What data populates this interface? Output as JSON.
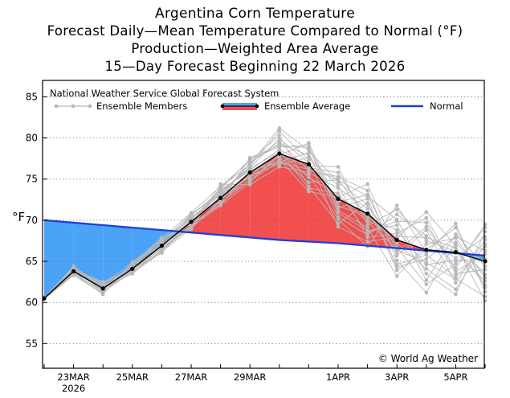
{
  "titles": {
    "line1": "Argentina Corn Temperature",
    "line2": "Forecast Daily—Mean Temperature Compared to Normal (°F)",
    "line3": "Production—Weighted Area Average",
    "line4": "15—Day Forecast Beginning 22 March 2026"
  },
  "legend": {
    "source": "National Weather Service Global Forecast System",
    "members": "Ensemble Members",
    "average": "Ensemble Average",
    "normal": "Normal"
  },
  "copyright": "© World Ag Weather",
  "colors": {
    "above": "#f24f4f",
    "below": "#4aa3f7",
    "normal": "#1e3fd9",
    "members": "#b8b8b8",
    "average": "#000000"
  },
  "chart_data": {
    "type": "line",
    "ylabel": "°F",
    "ylim": [
      52,
      87
    ],
    "yticks": [
      55,
      60,
      65,
      70,
      75,
      80,
      85
    ],
    "grid": true,
    "x": [
      "2026-03-22",
      "2026-03-23",
      "2026-03-24",
      "2026-03-25",
      "2026-03-26",
      "2026-03-27",
      "2026-03-28",
      "2026-03-29",
      "2026-03-30",
      "2026-03-31",
      "2026-04-01",
      "2026-04-02",
      "2026-04-03",
      "2026-04-04",
      "2026-04-05",
      "2026-04-06"
    ],
    "xtick_labels": [
      {
        "x": "2026-03-23",
        "label": "23MAR",
        "sublabel": "2026"
      },
      {
        "x": "2026-03-25",
        "label": "25MAR"
      },
      {
        "x": "2026-03-27",
        "label": "27MAR"
      },
      {
        "x": "2026-03-29",
        "label": "29MAR"
      },
      {
        "x": "2026-04-01",
        "label": "1APR"
      },
      {
        "x": "2026-04-03",
        "label": "3APR"
      },
      {
        "x": "2026-04-05",
        "label": "5APR"
      }
    ],
    "series": [
      {
        "name": "Ensemble Average",
        "values": [
          60.5,
          63.8,
          61.7,
          64.1,
          66.9,
          69.8,
          72.7,
          75.8,
          78.1,
          76.8,
          72.6,
          70.8,
          67.6,
          66.4,
          66.1,
          65.0
        ]
      },
      {
        "name": "Normal",
        "values": [
          70.0,
          69.7,
          69.4,
          69.1,
          68.8,
          68.5,
          68.2,
          67.9,
          67.6,
          67.4,
          67.2,
          66.9,
          66.6,
          66.3,
          66.0,
          65.7
        ]
      }
    ],
    "ensemble_members": [
      [
        60.5,
        63.9,
        61.4,
        64.6,
        67.1,
        70.1,
        73.4,
        76.3,
        78.3,
        75.2,
        73.1,
        69.8,
        66.4,
        64.8,
        62.9,
        60.7
      ],
      [
        60.4,
        63.4,
        62.1,
        63.8,
        66.6,
        69.4,
        72.1,
        74.9,
        77.1,
        78.2,
        70.4,
        68.2,
        70.7,
        68.1,
        65.4,
        68.0
      ],
      [
        60.6,
        64.2,
        61.9,
        64.5,
        67.4,
        70.4,
        73.0,
        76.9,
        79.6,
        76.0,
        75.3,
        73.6,
        65.1,
        61.2,
        67.3,
        63.4
      ],
      [
        60.5,
        63.6,
        61.2,
        63.9,
        66.2,
        69.0,
        72.4,
        75.5,
        76.8,
        77.6,
        74.2,
        67.9,
        68.4,
        70.3,
        63.8,
        65.9
      ],
      [
        60.4,
        64.0,
        62.3,
        64.8,
        67.8,
        70.9,
        74.1,
        77.2,
        80.3,
        74.1,
        69.6,
        72.1,
        63.9,
        66.4,
        69.1,
        61.8
      ],
      [
        60.6,
        63.7,
        61.6,
        63.6,
        66.4,
        69.2,
        71.8,
        74.6,
        77.9,
        79.4,
        71.7,
        70.6,
        67.2,
        64.1,
        61.6,
        67.1
      ],
      [
        60.5,
        64.4,
        62.0,
        64.2,
        66.9,
        70.6,
        73.6,
        76.1,
        78.6,
        76.6,
        76.5,
        69.4,
        71.3,
        67.5,
        66.2,
        62.6
      ],
      [
        60.4,
        63.5,
        61.0,
        64.9,
        67.6,
        69.7,
        72.9,
        75.2,
        77.4,
        73.5,
        72.8,
        74.4,
        66.1,
        69.2,
        64.2,
        69.5
      ],
      [
        60.6,
        63.8,
        62.4,
        64.0,
        66.0,
        70.3,
        72.2,
        77.6,
        79.1,
        78.8,
        70.9,
        68.7,
        69.4,
        62.7,
        68.3,
        64.4
      ],
      [
        60.5,
        64.1,
        61.3,
        63.7,
        67.2,
        68.9,
        74.4,
        74.3,
        76.5,
        75.8,
        73.9,
        71.4,
        64.6,
        65.8,
        63.1,
        66.8
      ],
      [
        60.4,
        63.6,
        62.2,
        64.4,
        66.7,
        70.7,
        73.2,
        76.6,
        80.8,
        77.3,
        69.2,
        67.4,
        67.9,
        71.0,
        66.9,
        60.2
      ],
      [
        60.6,
        64.3,
        61.5,
        64.7,
        67.9,
        69.5,
        71.9,
        75.7,
        77.7,
        74.6,
        74.9,
        72.9,
        70.1,
        63.5,
        61.0,
        68.6
      ],
      [
        60.5,
        63.9,
        61.8,
        63.5,
        66.3,
        70.0,
        73.8,
        77.4,
        78.9,
        79.1,
        71.2,
        69.1,
        63.2,
        67.1,
        67.8,
        63.0
      ],
      [
        60.4,
        63.3,
        61.1,
        64.3,
        67.5,
        70.2,
        72.6,
        74.8,
        78.0,
        76.4,
        75.8,
        70.2,
        68.8,
        64.6,
        65.1,
        65.3
      ],
      [
        60.6,
        64.0,
        62.5,
        64.1,
        66.5,
        69.3,
        73.5,
        76.4,
        79.9,
        77.0,
        72.2,
        73.1,
        65.7,
        68.8,
        62.4,
        67.6
      ],
      [
        60.5,
        63.7,
        61.7,
        64.6,
        67.0,
        70.5,
        72.3,
        75.9,
        77.2,
        75.5,
        70.1,
        66.8,
        71.8,
        66.0,
        69.6,
        61.3
      ],
      [
        60.4,
        64.2,
        61.9,
        63.9,
        66.8,
        69.1,
        74.0,
        76.8,
        81.2,
        78.5,
        74.6,
        71.9,
        66.7,
        62.2,
        64.7,
        69.1
      ],
      [
        60.6,
        63.5,
        61.4,
        64.8,
        67.3,
        70.8,
        73.1,
        75.3,
        78.4,
        73.9,
        73.3,
        68.5,
        69.9,
        69.7,
        63.5,
        64.0
      ],
      [
        60.5,
        64.1,
        62.1,
        63.6,
        66.1,
        69.9,
        72.8,
        77.0,
        79.3,
        77.9,
        71.5,
        72.6,
        64.3,
        65.3,
        68.0,
        66.3
      ],
      [
        60.4,
        63.8,
        61.6,
        64.5,
        67.7,
        69.6,
        73.7,
        76.0,
        77.0,
        76.2,
        75.0,
        70.0,
        68.0,
        67.9,
        66.6,
        62.1
      ]
    ]
  }
}
